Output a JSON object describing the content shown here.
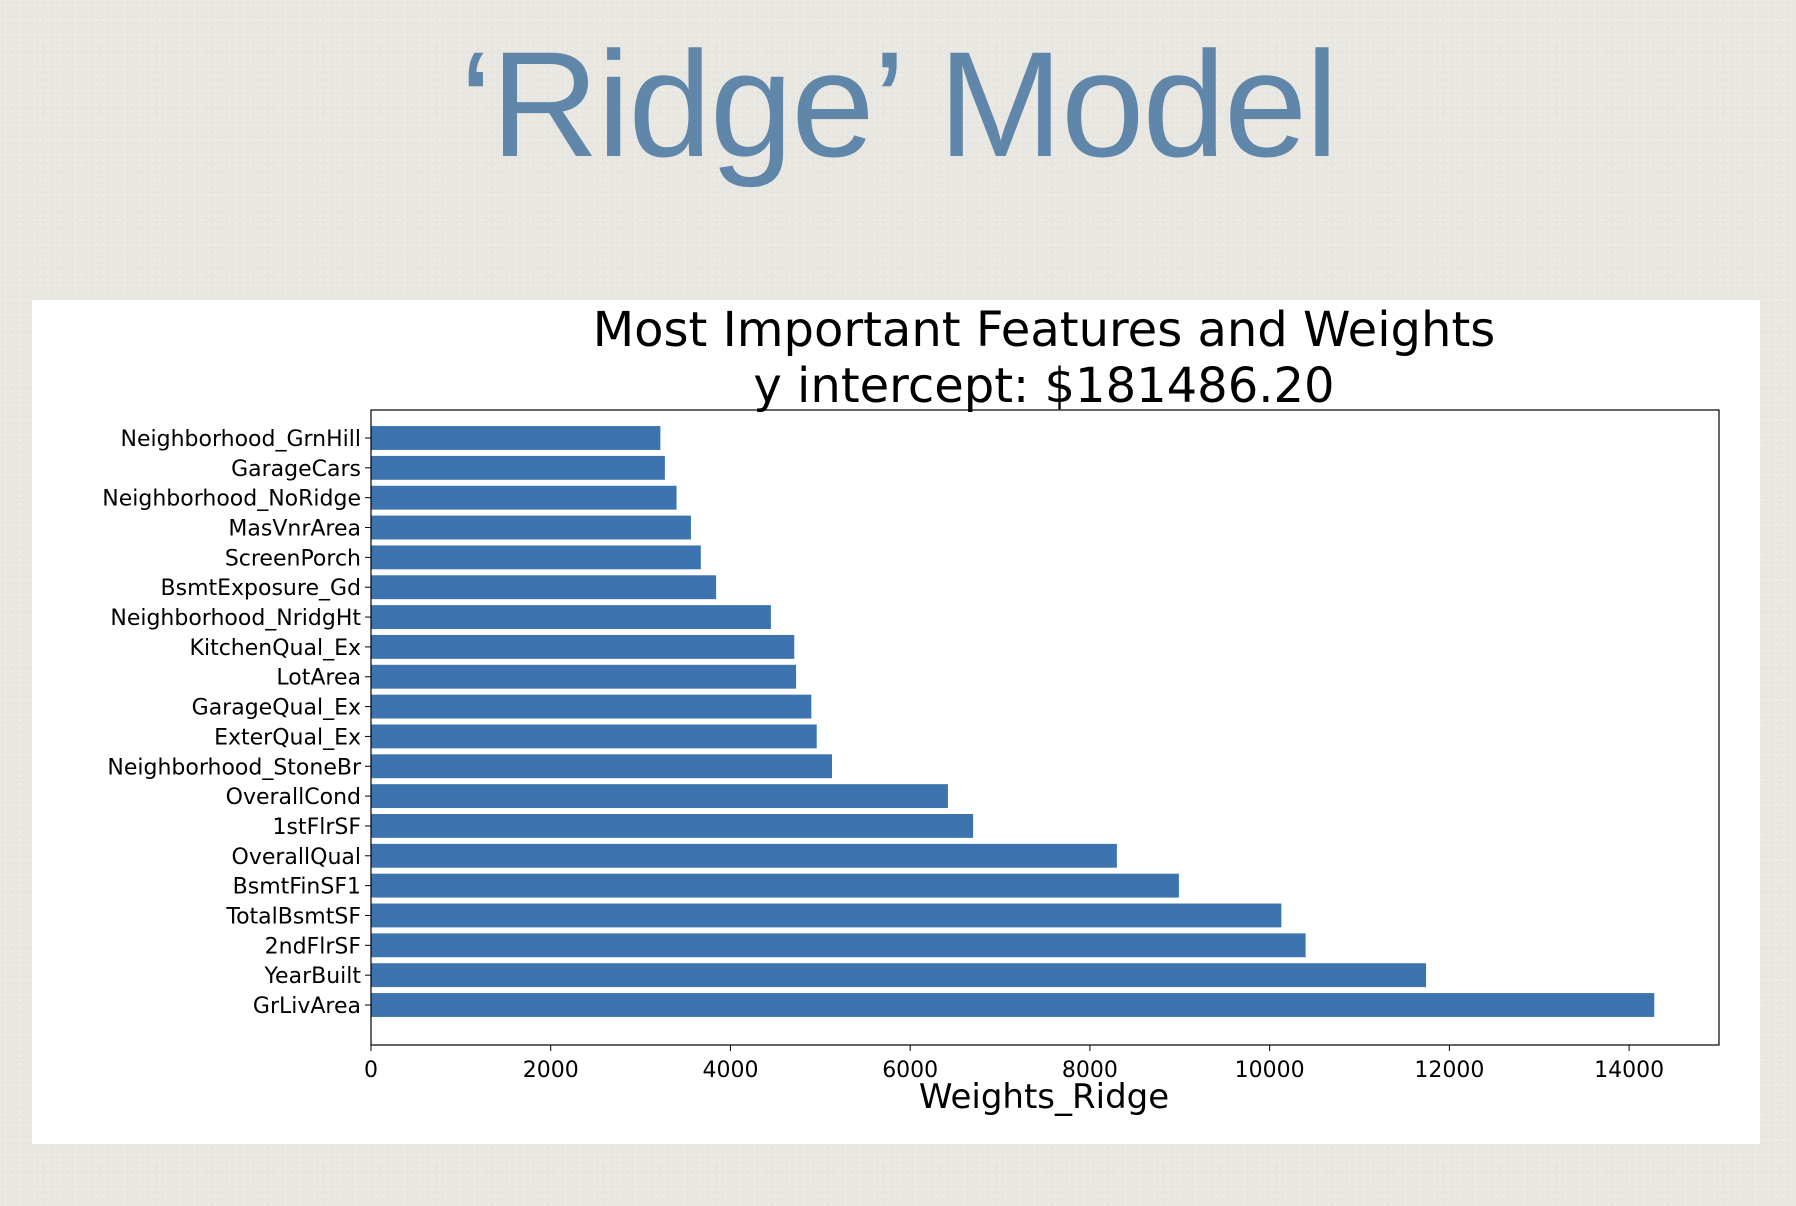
{
  "slide": {
    "title": "‘Ridge’ Model"
  },
  "chart_data": {
    "type": "bar",
    "orientation": "horizontal",
    "title": "Most Important Features and Weights",
    "subtitle": "y intercept: $181486.20",
    "xlabel": "Weights_Ridge",
    "ylabel": "",
    "xlim": [
      0,
      15000
    ],
    "xticks": [
      0,
      2000,
      4000,
      6000,
      8000,
      10000,
      12000,
      14000
    ],
    "grid": false,
    "bar_color": "#3d74b0",
    "categories": [
      "GrLivArea",
      "YearBuilt",
      "2ndFlrSF",
      "TotalBsmtSF",
      "BsmtFinSF1",
      "OverallQual",
      "1stFlrSF",
      "OverallCond",
      "Neighborhood_StoneBr",
      "ExterQual_Ex",
      "GarageQual_Ex",
      "LotArea",
      "KitchenQual_Ex",
      "Neighborhood_NridgHt",
      "BsmtExposure_Gd",
      "ScreenPorch",
      "MasVnrArea",
      "Neighborhood_NoRidge",
      "GarageCars",
      "Neighborhood_GrnHill"
    ],
    "values": [
      14280,
      11740,
      10400,
      10130,
      8990,
      8300,
      6700,
      6420,
      5130,
      4960,
      4900,
      4730,
      4710,
      4450,
      3840,
      3670,
      3560,
      3400,
      3270,
      3220
    ]
  }
}
